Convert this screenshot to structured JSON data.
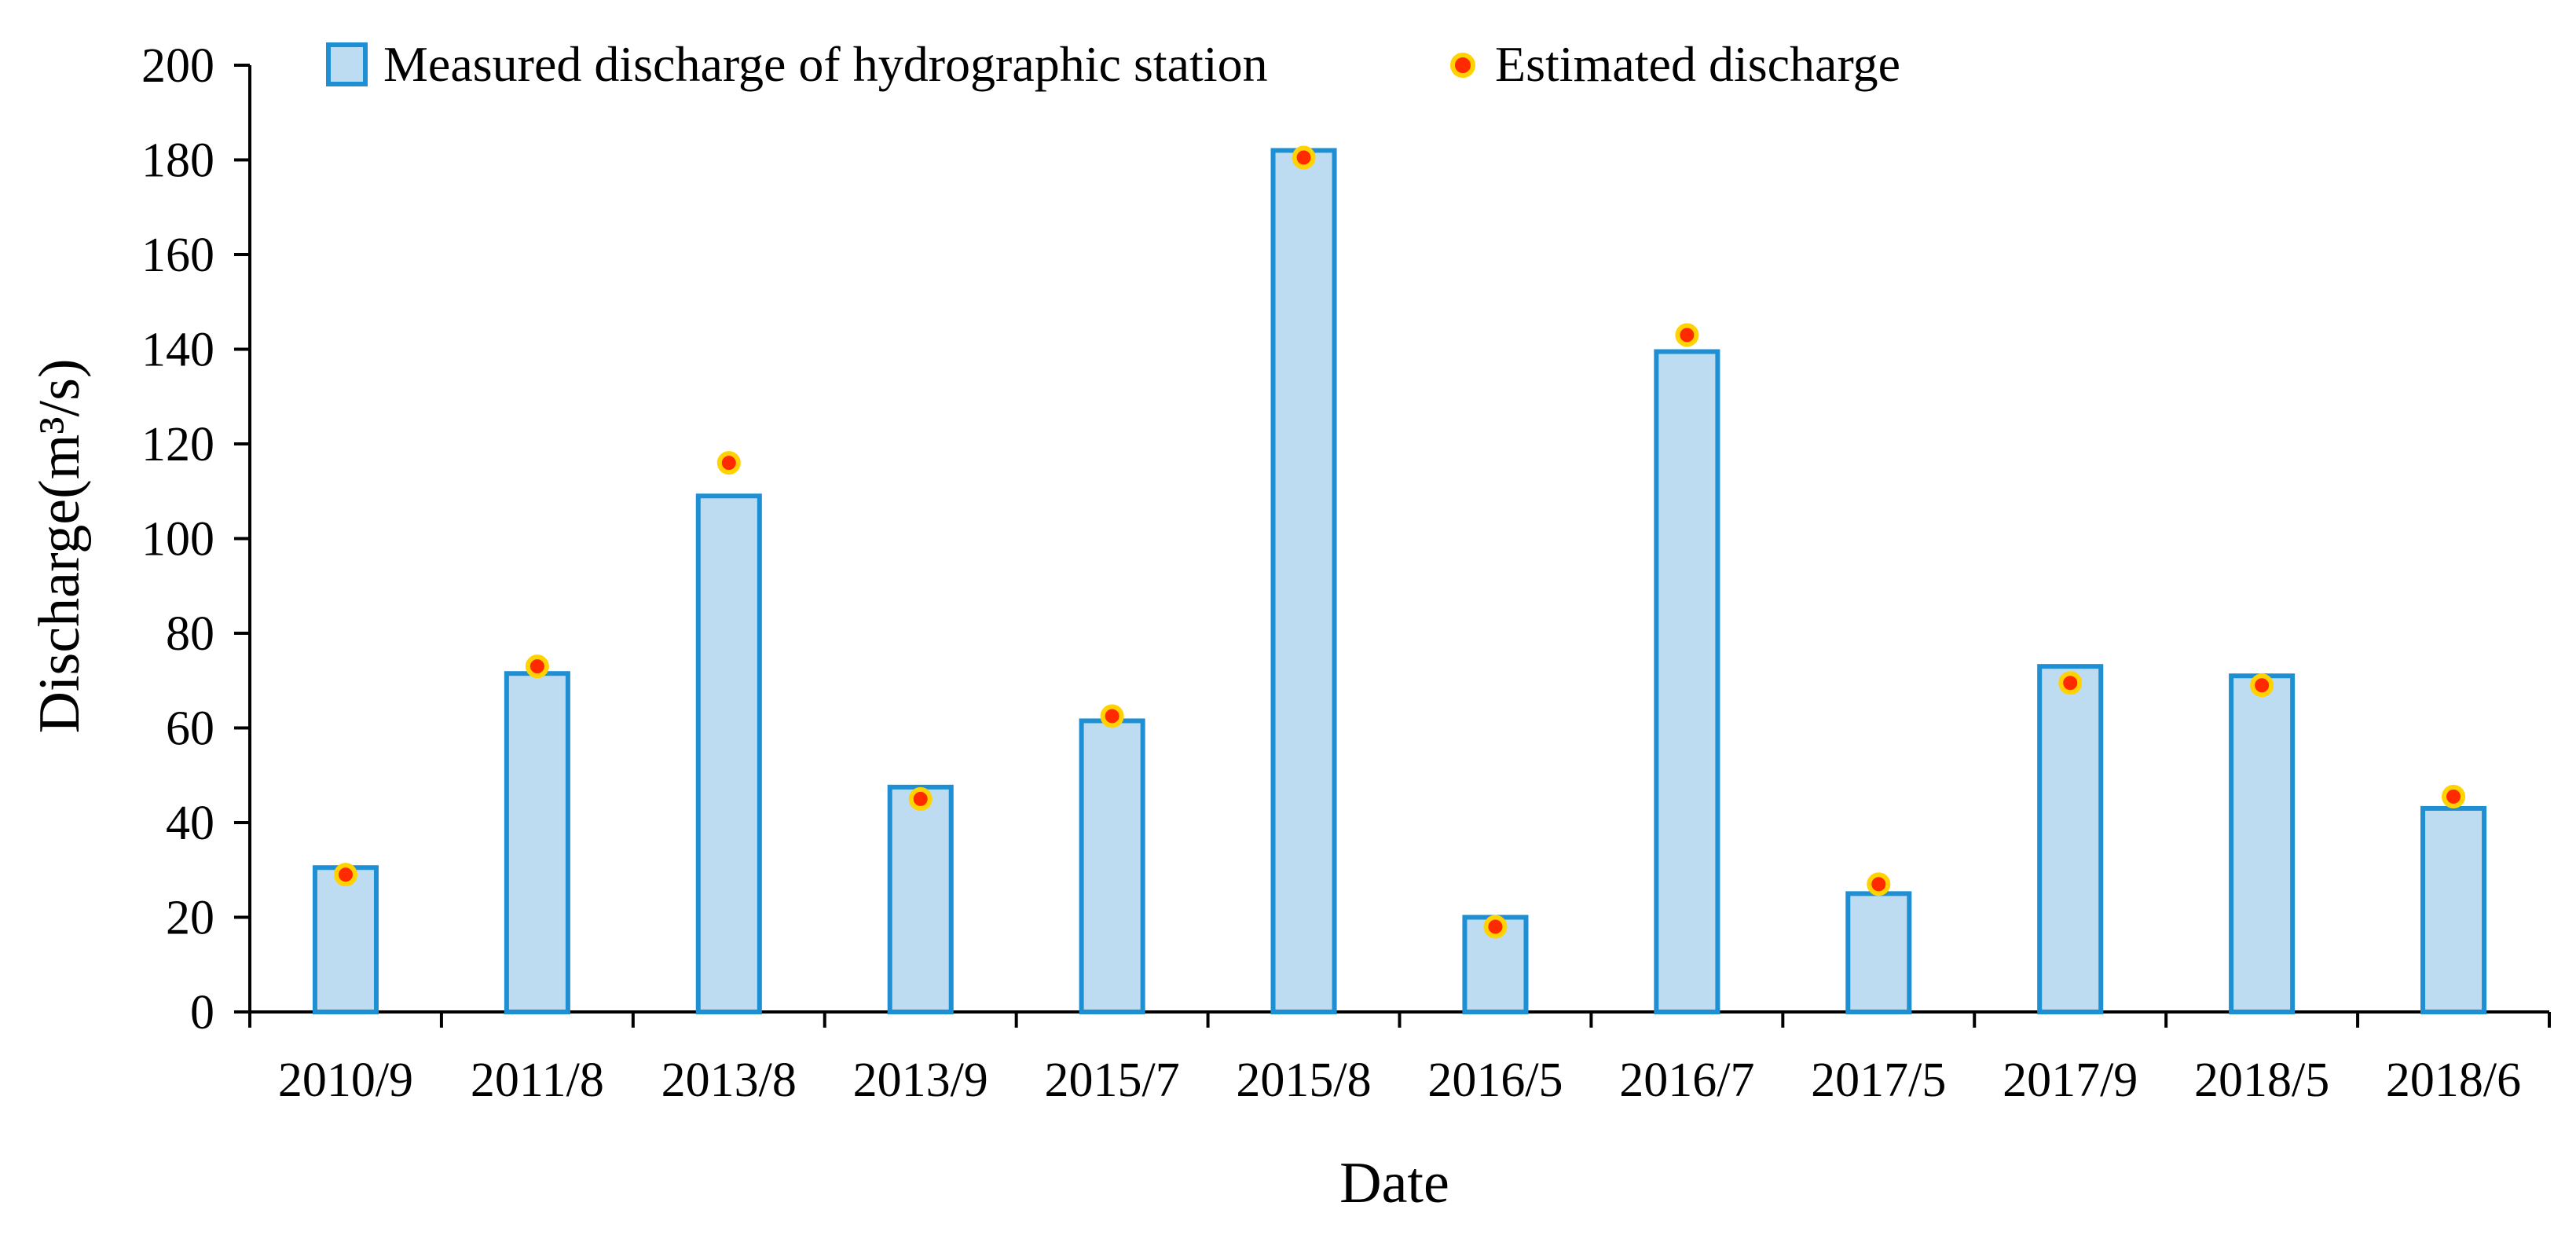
{
  "chart_data": {
    "type": "bar",
    "title": "",
    "xlabel": "Date",
    "ylabel": "Discharge(m³/s)",
    "ylim": [
      0,
      200
    ],
    "yticks": [
      "0",
      "20",
      "40",
      "60",
      "80",
      "100",
      "120",
      "140",
      "160",
      "180",
      "200"
    ],
    "categories": [
      "2010/9",
      "2011/8",
      "2013/8",
      "2013/9",
      "2015/7",
      "2015/8",
      "2016/5",
      "2016/7",
      "2017/5",
      "2017/9",
      "2018/5",
      "2018/6"
    ],
    "series": [
      {
        "name": "Measured discharge of hydrographic station",
        "kind": "bar",
        "values": [
          30.5,
          71.5,
          109,
          47.5,
          61.5,
          182,
          20,
          139.5,
          25,
          73,
          71,
          43
        ]
      },
      {
        "name": "Estimated discharge",
        "kind": "point",
        "values": [
          29,
          73,
          116,
          45,
          62.5,
          180.5,
          18,
          143,
          27,
          69.5,
          69,
          45.5
        ]
      }
    ],
    "grid": false,
    "legend_position": "top",
    "colors": {
      "bar_fill": "#bddcf2",
      "bar_stroke": "#1f8fd3",
      "point_fill": "#ff2a00",
      "point_stroke": "#ffd200",
      "axis": "#000000"
    }
  }
}
